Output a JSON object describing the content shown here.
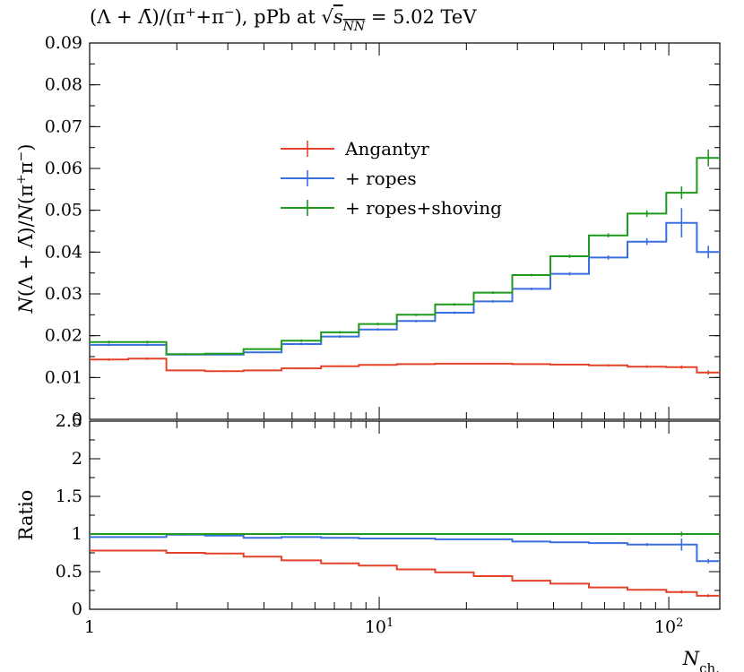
{
  "chart_data": [
    {
      "panel": "main",
      "type": "line",
      "title": "(Λ + Λ̄)/(π⁺+π⁻), pPb at √s_NN = 5.02 TeV",
      "ylabel": "N(Λ + Λ̄)/N(π⁺π⁻)",
      "xlabel": "N_ch.",
      "xscale": "log",
      "xlim": [
        1,
        150
      ],
      "ylim": [
        0,
        0.09
      ],
      "yticks": [
        "0",
        "0.01",
        "0.02",
        "0.03",
        "0.04",
        "0.05",
        "0.06",
        "0.07",
        "0.08",
        "0.09"
      ],
      "xticks": [
        "1",
        "10¹",
        "10²"
      ],
      "legend_position": "top-center",
      "bin_edges": [
        1,
        1.36,
        1.84,
        2.5,
        3.4,
        4.6,
        6.3,
        8.5,
        11.5,
        15.6,
        21.2,
        28.8,
        39,
        53,
        72,
        98,
        125,
        150
      ],
      "series": [
        {
          "name": "Angantyr",
          "color": "#e2432a",
          "values": [
            0.0143,
            0.0145,
            0.0117,
            0.0115,
            0.0117,
            0.0122,
            0.0127,
            0.013,
            0.0132,
            0.0133,
            0.0133,
            0.0132,
            0.0131,
            0.0129,
            0.0126,
            0.0125,
            0.0112
          ],
          "errors": [
            0.0003,
            0.0003,
            0.0002,
            0.0002,
            0.0002,
            0.0002,
            0.0002,
            0.0002,
            0.0002,
            0.0002,
            0.0002,
            0.0002,
            0.0002,
            0.0003,
            0.0003,
            0.0004,
            0.0005
          ]
        },
        {
          "name": "+ ropes",
          "color": "#3a6fe0",
          "values": [
            0.0178,
            0.0178,
            0.0155,
            0.0155,
            0.016,
            0.018,
            0.0198,
            0.0215,
            0.0235,
            0.0255,
            0.0282,
            0.0312,
            0.0348,
            0.0387,
            0.0425,
            0.047,
            0.04
          ],
          "errors": [
            0.0003,
            0.0003,
            0.0002,
            0.0002,
            0.0002,
            0.0003,
            0.0003,
            0.0003,
            0.0003,
            0.0003,
            0.0003,
            0.0003,
            0.0004,
            0.0005,
            0.0008,
            0.0035,
            0.0015
          ]
        },
        {
          "name": "+ ropes+shoving",
          "color": "#1f9a1f",
          "values": [
            0.0185,
            0.0185,
            0.0156,
            0.0157,
            0.0168,
            0.0188,
            0.0208,
            0.0228,
            0.025,
            0.0275,
            0.0303,
            0.0345,
            0.039,
            0.044,
            0.0492,
            0.0542,
            0.0625
          ],
          "errors": [
            0.0003,
            0.0003,
            0.0002,
            0.0002,
            0.0002,
            0.0003,
            0.0003,
            0.0003,
            0.0003,
            0.0003,
            0.0003,
            0.0003,
            0.0004,
            0.0005,
            0.0008,
            0.0015,
            0.002
          ]
        }
      ]
    },
    {
      "panel": "ratio",
      "type": "line",
      "ylabel": "Ratio",
      "xscale": "log",
      "xlim": [
        1,
        150
      ],
      "ylim": [
        0,
        2.5
      ],
      "yticks": [
        "0",
        "0.5",
        "1",
        "1.5",
        "2",
        "2.5"
      ],
      "series": [
        {
          "name": "Angantyr",
          "color": "#e2432a",
          "values": [
            0.78,
            0.78,
            0.75,
            0.74,
            0.7,
            0.65,
            0.61,
            0.58,
            0.53,
            0.49,
            0.44,
            0.38,
            0.34,
            0.29,
            0.26,
            0.23,
            0.18
          ],
          "errors": [
            0.01,
            0.01,
            0.01,
            0.01,
            0.01,
            0.01,
            0.01,
            0.01,
            0.01,
            0.01,
            0.01,
            0.01,
            0.01,
            0.01,
            0.01,
            0.02,
            0.02
          ]
        },
        {
          "name": "+ ropes",
          "color": "#3a6fe0",
          "values": [
            0.96,
            0.96,
            0.99,
            0.98,
            0.95,
            0.96,
            0.95,
            0.94,
            0.94,
            0.93,
            0.93,
            0.9,
            0.89,
            0.88,
            0.86,
            0.86,
            0.64
          ],
          "errors": [
            0.01,
            0.01,
            0.01,
            0.01,
            0.01,
            0.01,
            0.01,
            0.01,
            0.01,
            0.01,
            0.01,
            0.01,
            0.01,
            0.01,
            0.02,
            0.08,
            0.03
          ]
        },
        {
          "name": "+ ropes+shoving",
          "color": "#1f9a1f",
          "values": [
            1,
            1,
            1,
            1,
            1,
            1,
            1,
            1,
            1,
            1,
            1,
            1,
            1,
            1,
            1,
            1,
            1
          ],
          "errors": [
            0,
            0,
            0,
            0,
            0,
            0,
            0,
            0,
            0,
            0,
            0,
            0,
            0,
            0,
            0,
            0.03,
            0
          ]
        }
      ]
    }
  ]
}
